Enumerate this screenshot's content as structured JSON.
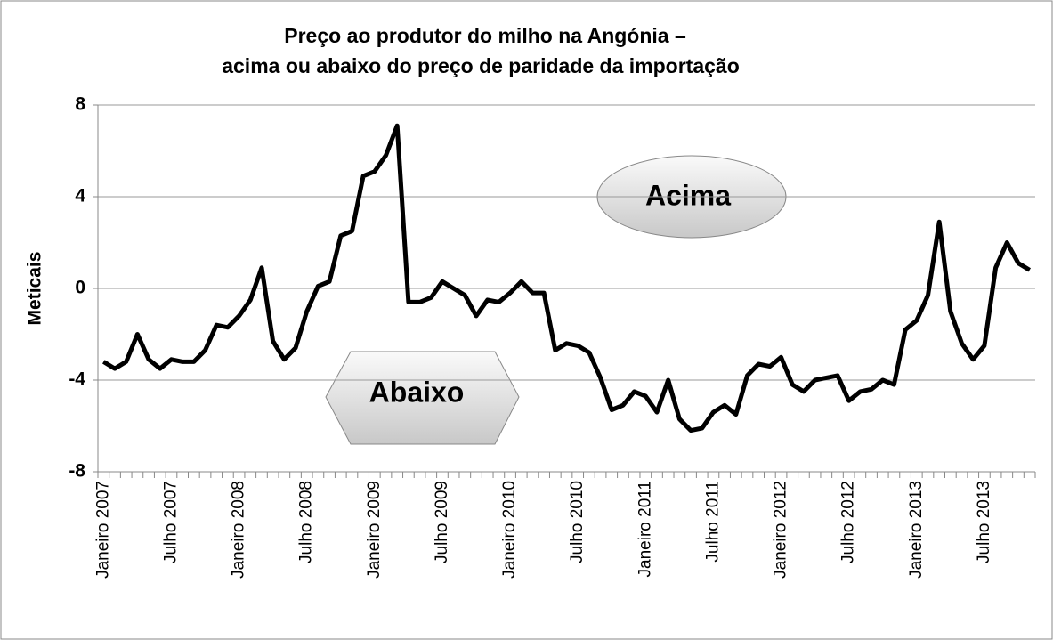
{
  "chart_data": {
    "type": "line",
    "title": [
      "Preço ao produtor do milho na Angónia –",
      "acima ou abaixo do preço de paridade da importação"
    ],
    "y_label": "Meticais",
    "annotations": [
      "Acima",
      "Abaixo"
    ],
    "categories": [
      "Janeiro 2007",
      null,
      null,
      null,
      null,
      null,
      "Julho 2007",
      null,
      null,
      null,
      null,
      null,
      "Janeiro 2008",
      null,
      null,
      null,
      null,
      null,
      "Julho 2008",
      null,
      null,
      null,
      null,
      null,
      "Janeiro 2009",
      null,
      null,
      null,
      null,
      null,
      "Julho 2009",
      null,
      null,
      null,
      null,
      null,
      "Janeiro 2010",
      null,
      null,
      null,
      null,
      null,
      "Julho 2010",
      null,
      null,
      null,
      null,
      null,
      "Janeiro 2011",
      null,
      null,
      null,
      null,
      null,
      "Julho 2011",
      null,
      null,
      null,
      null,
      null,
      "Janeiro 2012",
      null,
      null,
      null,
      null,
      null,
      "Julho 2012",
      null,
      null,
      null,
      null,
      null,
      "Janeiro 2013",
      null,
      null,
      null,
      null,
      null,
      "Julho 2013",
      null,
      null,
      null,
      null
    ],
    "series": [
      {
        "name": "Meticais",
        "color": "#000000",
        "values": [
          -3.2,
          -3.5,
          -3.2,
          -2.0,
          -3.1,
          -3.5,
          -3.1,
          -3.2,
          -3.2,
          -2.7,
          -1.6,
          -1.7,
          -1.2,
          -0.5,
          0.9,
          -2.3,
          -3.1,
          -2.6,
          -1.0,
          0.1,
          0.3,
          2.3,
          2.5,
          4.9,
          5.1,
          5.8,
          7.1,
          -0.6,
          -0.6,
          -0.4,
          0.3,
          0.0,
          -0.3,
          -1.2,
          -0.5,
          -0.6,
          -0.2,
          0.3,
          -0.2,
          -0.2,
          -2.7,
          -2.4,
          -2.5,
          -2.8,
          -3.9,
          -5.3,
          -5.1,
          -4.5,
          -4.7,
          -5.4,
          -4.0,
          -5.7,
          -6.2,
          -6.1,
          -5.4,
          -5.1,
          -5.5,
          -3.8,
          -3.3,
          -3.4,
          -3.0,
          -4.2,
          -4.5,
          -4.0,
          -3.9,
          -3.8,
          -4.9,
          -4.5,
          -4.4,
          -4.0,
          -4.2,
          -1.8,
          -1.4,
          -0.3,
          2.9,
          -1.0,
          -2.4,
          -3.1,
          -2.5,
          0.9,
          2.0,
          1.1,
          0.8
        ]
      }
    ],
    "ylim": [
      -8,
      8
    ],
    "yticks": [
      -8,
      -4,
      0,
      4,
      8
    ],
    "grid": true
  }
}
